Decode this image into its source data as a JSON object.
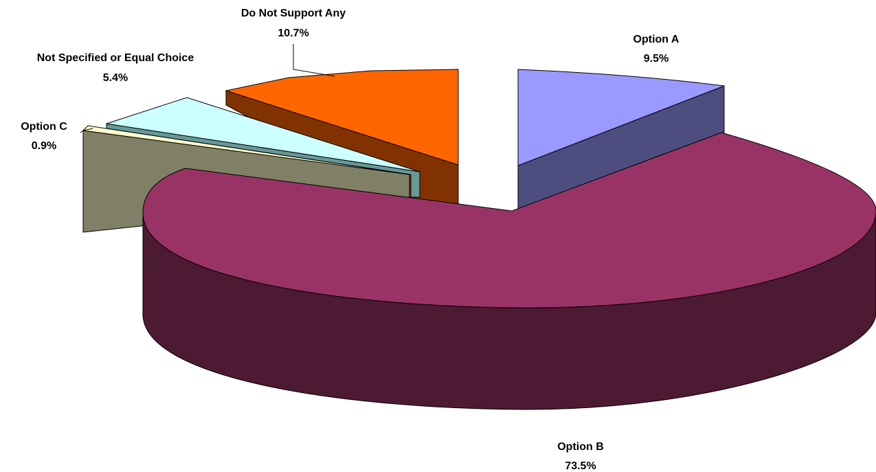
{
  "chart_data": {
    "type": "pie",
    "style": "3d-exploded",
    "slices": [
      {
        "label": "Option A",
        "value": 9.5,
        "value_label": "9.5%",
        "color": "#9999ff"
      },
      {
        "label": "Option B",
        "value": 73.5,
        "value_label": "73.5%",
        "color": "#993366"
      },
      {
        "label": "Option C",
        "value": 0.9,
        "value_label": "0.9%",
        "color": "#ffffcc"
      },
      {
        "label": "Not Specified or Equal Choice",
        "value": 5.4,
        "value_label": "5.4%",
        "color": "#ccffff"
      },
      {
        "label": "Do Not Support Any",
        "value": 10.7,
        "value_label": "10.7%",
        "color": "#ff6600"
      }
    ],
    "extra_side_face_colors": [
      "#808066"
    ]
  }
}
